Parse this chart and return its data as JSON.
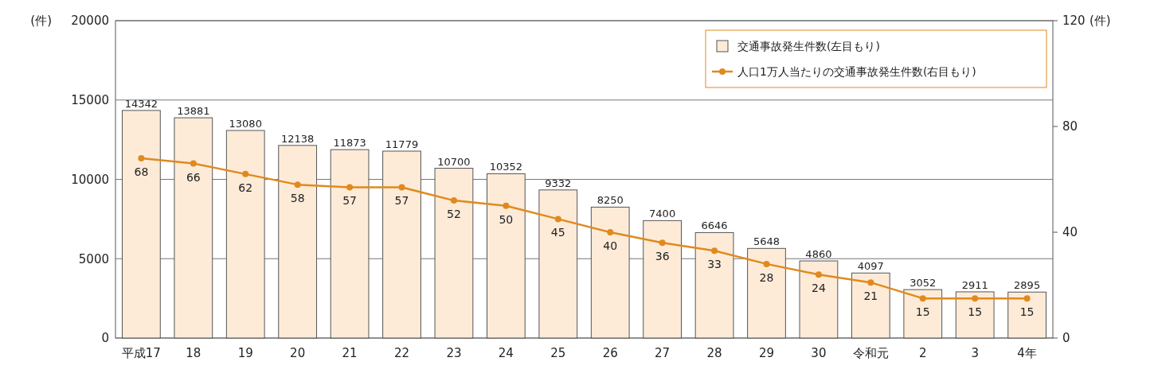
{
  "chart_data": {
    "type": "bar",
    "ylabel": "(件)",
    "y2label": "(件)",
    "categories": [
      "平成17",
      "18",
      "19",
      "20",
      "21",
      "22",
      "23",
      "24",
      "25",
      "26",
      "27",
      "28",
      "29",
      "30",
      "令和元",
      "2",
      "3",
      "4年"
    ],
    "series": [
      {
        "name": "交通事故発生件数(左目もり)",
        "color": "#fdebd8",
        "values": [
          14342,
          13881,
          13080,
          12138,
          11873,
          11779,
          10700,
          10352,
          9332,
          8250,
          7400,
          6646,
          5648,
          4860,
          4097,
          3052,
          2911,
          2895
        ]
      },
      {
        "name": "人口1万人当たりの交通事故発生件数(右目もり)",
        "type": "line",
        "axis": "y2",
        "color": "#e08a1e",
        "values": [
          68,
          66,
          62,
          58,
          57,
          57,
          52,
          50,
          45,
          40,
          36,
          33,
          28,
          24,
          21,
          15,
          15,
          15
        ]
      }
    ],
    "ylim": [
      0,
      20000
    ],
    "yticks": [
      0,
      5000,
      10000,
      15000,
      20000
    ],
    "y2lim": [
      0,
      120
    ],
    "y2ticks": [
      0,
      40,
      80,
      120
    ],
    "grid": "y",
    "legend": "top right",
    "marker": "circle",
    "line_style": "solid",
    "data_labels": true
  }
}
